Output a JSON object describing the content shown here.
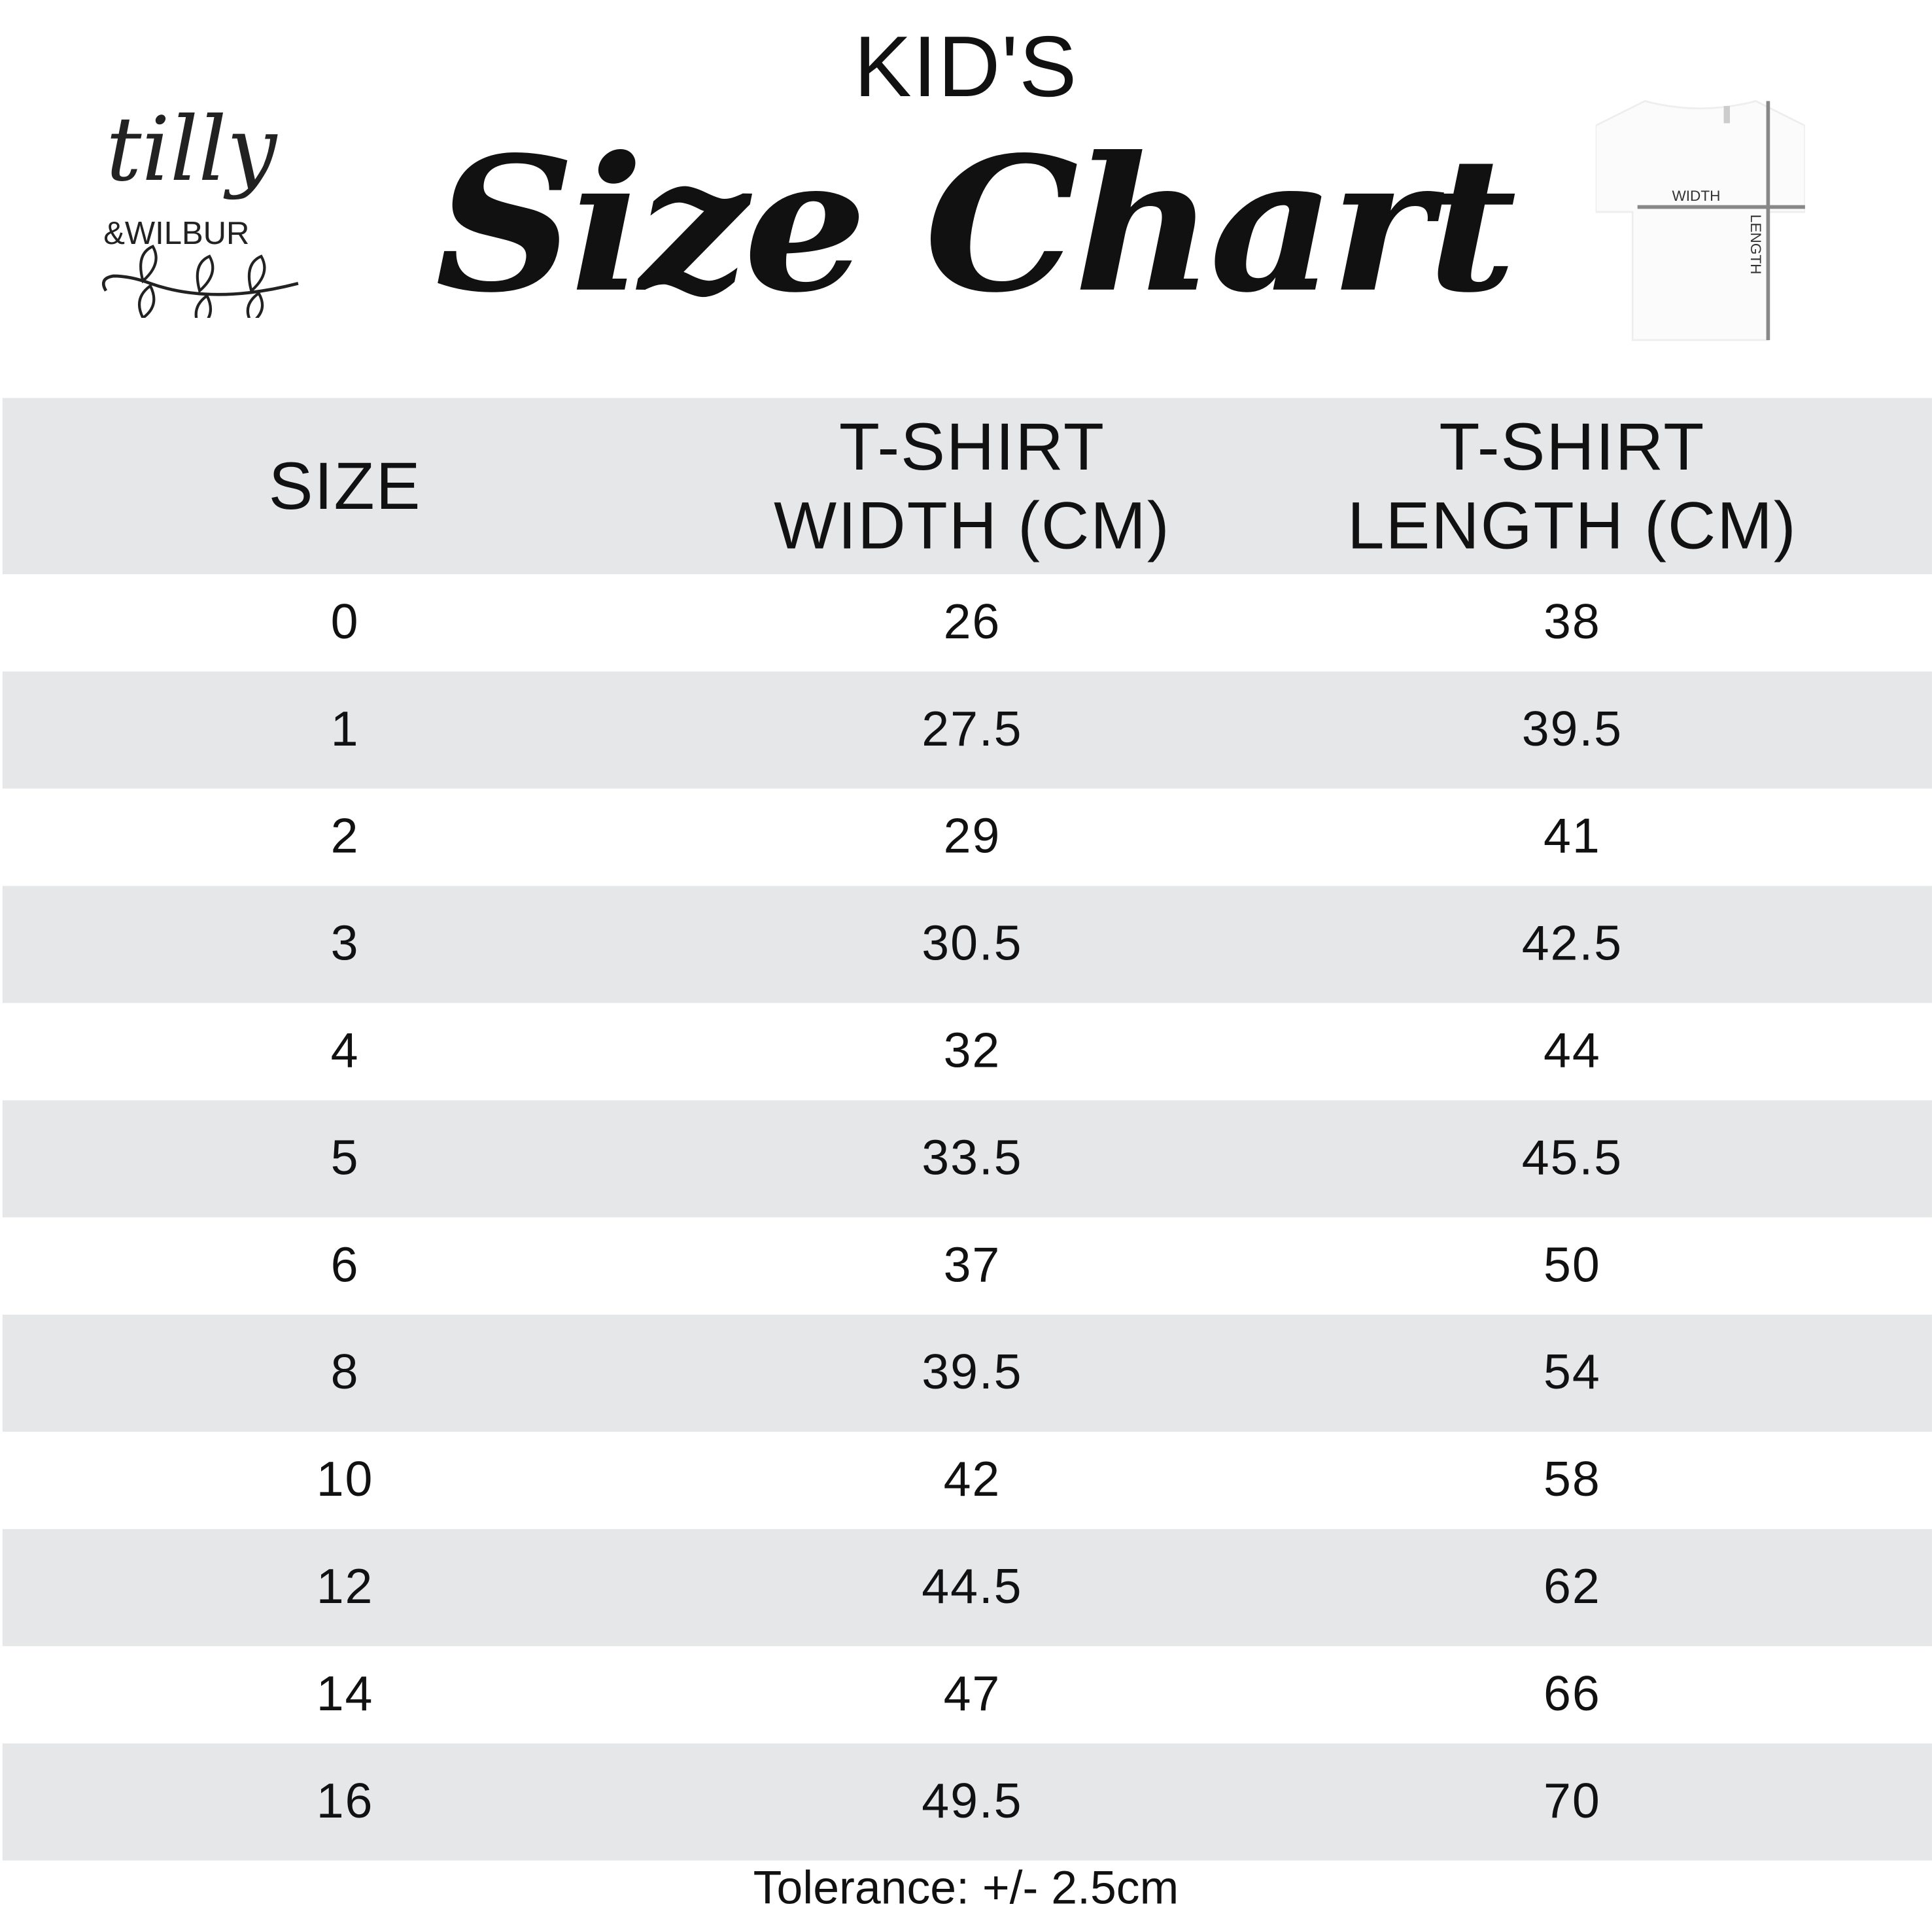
{
  "header": {
    "kicker": "KID'S",
    "title": "Size Chart",
    "logo": {
      "line1": "tilly",
      "line2": "&WILBUR"
    },
    "diagram": {
      "width_label": "WIDTH",
      "length_label": "LENGTH"
    }
  },
  "table": {
    "columns": [
      "SIZE",
      "T-SHIRT WIDTH (CM)",
      "T-SHIRT LENGTH (CM)"
    ],
    "rows": [
      [
        "0",
        "26",
        "38"
      ],
      [
        "1",
        "27.5",
        "39.5"
      ],
      [
        "2",
        "29",
        "41"
      ],
      [
        "3",
        "30.5",
        "42.5"
      ],
      [
        "4",
        "32",
        "44"
      ],
      [
        "5",
        "33.5",
        "45.5"
      ],
      [
        "6",
        "37",
        "50"
      ],
      [
        "8",
        "39.5",
        "54"
      ],
      [
        "10",
        "42",
        "58"
      ],
      [
        "12",
        "44.5",
        "62"
      ],
      [
        "14",
        "47",
        "66"
      ],
      [
        "16",
        "49.5",
        "70"
      ]
    ]
  },
  "footer": {
    "tolerance": "Tolerance: +/- 2.5cm"
  },
  "colors": {
    "row_stripe": "#e6e7e8",
    "text": "#111111",
    "measure_line": "#888888"
  }
}
